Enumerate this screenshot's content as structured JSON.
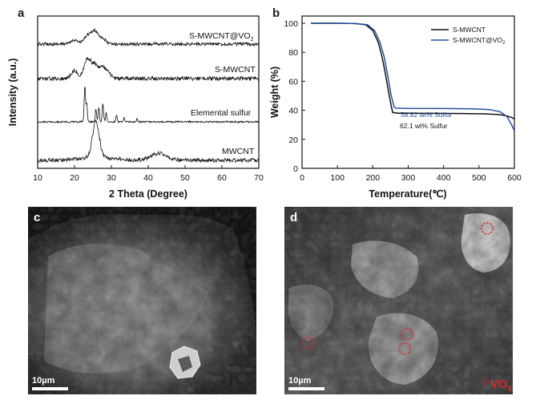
{
  "panels": {
    "a": "a",
    "b": "b",
    "c": "c",
    "d": "d"
  },
  "colors": {
    "black": "#111111",
    "blue": "#2a4f9a",
    "red_marker": "#d8262c"
  },
  "chart_data": [
    {
      "type": "line",
      "panel": "a",
      "xlabel": "2 Theta (Degree)",
      "ylabel": "Intensity (a.u.)",
      "xlim": [
        10,
        70
      ],
      "xticks": [
        "10",
        "20",
        "30",
        "40",
        "50",
        "60",
        "70"
      ],
      "series": [
        {
          "name": "S-MWCNT@VO2",
          "label_main": "S-MWCNT@VO",
          "label_sub": "2",
          "peaks": [
            [
              20,
              0.15
            ],
            [
              23.5,
              0.3
            ],
            [
              25.5,
              0.45
            ],
            [
              27.5,
              0.2
            ]
          ]
        },
        {
          "name": "S-MWCNT",
          "label_main": "S-MWCNT",
          "peaks": [
            [
              20,
              0.25
            ],
            [
              23.5,
              0.6
            ],
            [
              25.5,
              0.4
            ],
            [
              27.5,
              0.3
            ],
            [
              29,
              0.15
            ]
          ]
        },
        {
          "name": "Elemental sulfur",
          "label_main": "Elemental sulfur",
          "peaks": [
            [
              22.8,
              1.0
            ],
            [
              23.3,
              0.5
            ],
            [
              25.8,
              0.35
            ],
            [
              26.6,
              0.4
            ],
            [
              27.7,
              0.5
            ],
            [
              28.6,
              0.25
            ],
            [
              31.4,
              0.2
            ],
            [
              33.5,
              0.12
            ],
            [
              37,
              0.08
            ]
          ]
        },
        {
          "name": "MWCNT",
          "label_main": "MWCNT",
          "peaks": [
            [
              25.8,
              1.0
            ],
            [
              43,
              0.2
            ]
          ]
        }
      ]
    },
    {
      "type": "line",
      "panel": "b",
      "xlabel": "Temperature(℃)",
      "ylabel": "Weight (%)",
      "xlim": [
        0,
        600
      ],
      "ylim": [
        0,
        105
      ],
      "xticks": [
        "0",
        "100",
        "200",
        "300",
        "400",
        "500",
        "600"
      ],
      "yticks": [
        "0",
        "20",
        "40",
        "60",
        "80",
        "100"
      ],
      "legend_position": "top-right",
      "series": [
        {
          "name": "S-MWCNT",
          "color": "#111111",
          "points": [
            [
              25,
              100
            ],
            [
              100,
              100
            ],
            [
              150,
              99.8
            ],
            [
              180,
              99
            ],
            [
              200,
              95
            ],
            [
              215,
              87
            ],
            [
              225,
              78
            ],
            [
              235,
              66
            ],
            [
              245,
              52
            ],
            [
              252,
              43
            ],
            [
              256,
              38.5
            ],
            [
              270,
              38
            ],
            [
              350,
              37.9
            ],
            [
              450,
              37.8
            ],
            [
              520,
              37.5
            ],
            [
              560,
              37
            ],
            [
              580,
              36
            ],
            [
              593,
              35
            ],
            [
              600,
              34
            ]
          ]
        },
        {
          "name": "S-MWCNT@VO2",
          "color": "#2a4f9a",
          "points": [
            [
              25,
              100
            ],
            [
              100,
              100
            ],
            [
              150,
              99.8
            ],
            [
              185,
              99
            ],
            [
              205,
              95
            ],
            [
              220,
              87
            ],
            [
              232,
              77
            ],
            [
              242,
              64
            ],
            [
              252,
              50
            ],
            [
              260,
              42.5
            ],
            [
              265,
              41.5
            ],
            [
              300,
              41.3
            ],
            [
              400,
              41.2
            ],
            [
              480,
              41
            ],
            [
              530,
              40.5
            ],
            [
              560,
              39
            ],
            [
              578,
              36
            ],
            [
              590,
              31
            ],
            [
              600,
              26
            ]
          ]
        }
      ],
      "legend": [
        {
          "label_main": "S-MWCNT"
        },
        {
          "label_main": "S-MWCNT@VO",
          "label_sub": "2"
        }
      ],
      "annotations": [
        {
          "text": "58.82 wt% Sulfur",
          "color": "#2a4f9a"
        },
        {
          "text": "62.1 wt% Sulfur",
          "color": "#111111"
        }
      ]
    }
  ],
  "images": {
    "c": {
      "scale_bar_label": "10µm"
    },
    "d": {
      "scale_bar_label": "10µm",
      "marker_label_main": "VO",
      "marker_label_sub": "2"
    }
  }
}
